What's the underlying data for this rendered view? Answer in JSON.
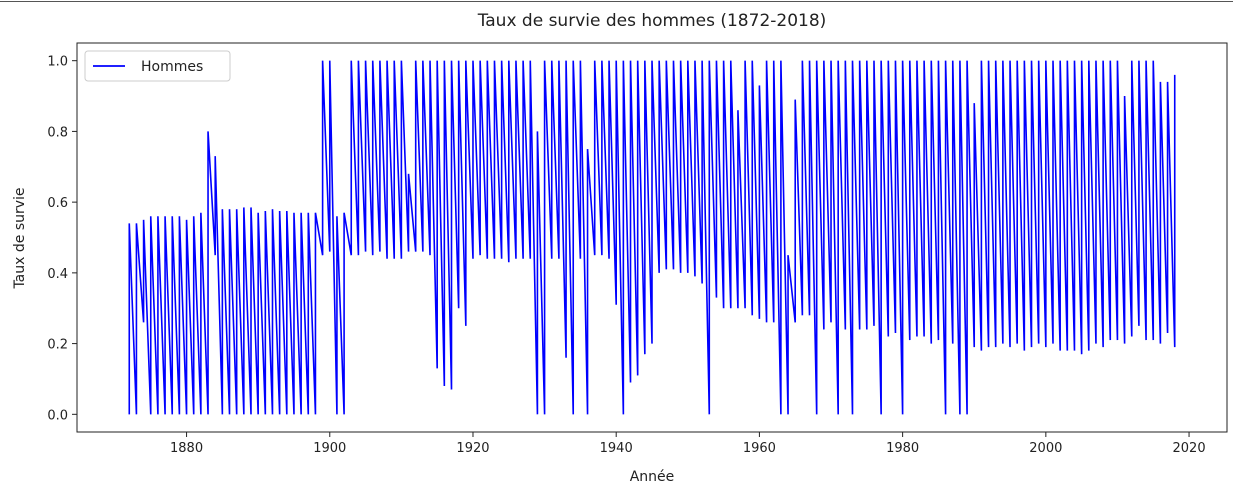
{
  "chart_data": {
    "type": "line",
    "title": "Taux de survie des hommes (1872-2018)",
    "xlabel": "Année",
    "ylabel": "Taux de survie",
    "xlim": [
      1864.7,
      2025.3
    ],
    "ylim": [
      -0.05,
      1.05
    ],
    "xticks": [
      1880,
      1900,
      1920,
      1940,
      1960,
      1980,
      2000,
      2020
    ],
    "yticks": [
      {
        "value": 0,
        "label": "0.0"
      },
      {
        "value": 0.2,
        "label": "0.2"
      },
      {
        "value": 0.4,
        "label": "0.4"
      },
      {
        "value": 0.6,
        "label": "0.6"
      },
      {
        "value": 0.8,
        "label": "0.8"
      },
      {
        "value": 1,
        "label": "1.0"
      }
    ],
    "legend": "upper left",
    "series": [
      {
        "name": "Hommes",
        "color": "#0000ff",
        "x": [
          1872,
          1872,
          1873,
          1873,
          1874,
          1874,
          1875,
          1875,
          1876,
          1876,
          1877,
          1877,
          1878,
          1878,
          1879,
          1879,
          1880,
          1880,
          1881,
          1881,
          1882,
          1882,
          1883,
          1883,
          1884,
          1884,
          1885,
          1885,
          1886,
          1886,
          1887,
          1887,
          1888,
          1888,
          1889,
          1889,
          1890,
          1890,
          1891,
          1891,
          1892,
          1892,
          1893,
          1893,
          1894,
          1894,
          1895,
          1895,
          1896,
          1896,
          1897,
          1897,
          1898,
          1898,
          1899,
          1899,
          1900,
          1900,
          1901,
          1901,
          1902,
          1902,
          1903,
          1903,
          1904,
          1904,
          1905,
          1905,
          1906,
          1906,
          1907,
          1907,
          1908,
          1908,
          1909,
          1909,
          1910,
          1910,
          1911,
          1911,
          1912,
          1912,
          1913,
          1913,
          1914,
          1914,
          1915,
          1915,
          1916,
          1916,
          1917,
          1917,
          1918,
          1918,
          1919,
          1919,
          1920,
          1920,
          1921,
          1921,
          1922,
          1922,
          1923,
          1923,
          1924,
          1924,
          1925,
          1925,
          1926,
          1926,
          1927,
          1927,
          1928,
          1928,
          1929,
          1929,
          1930,
          1930,
          1931,
          1931,
          1932,
          1932,
          1933,
          1933,
          1934,
          1934,
          1935,
          1935,
          1936,
          1936,
          1937,
          1937,
          1938,
          1938,
          1939,
          1939,
          1940,
          1940,
          1941,
          1941,
          1942,
          1942,
          1943,
          1943,
          1944,
          1944,
          1945,
          1945,
          1946,
          1946,
          1947,
          1947,
          1948,
          1948,
          1949,
          1949,
          1950,
          1950,
          1951,
          1951,
          1952,
          1952,
          1953,
          1953,
          1954,
          1954,
          1955,
          1955,
          1956,
          1956,
          1957,
          1957,
          1958,
          1958,
          1959,
          1959,
          1960,
          1960,
          1961,
          1961,
          1962,
          1962,
          1963,
          1963,
          1964,
          1964,
          1965,
          1965,
          1966,
          1966,
          1967,
          1967,
          1968,
          1968,
          1969,
          1969,
          1970,
          1970,
          1971,
          1971,
          1972,
          1972,
          1973,
          1973,
          1974,
          1974,
          1975,
          1975,
          1976,
          1976,
          1977,
          1977,
          1978,
          1978,
          1979,
          1979,
          1980,
          1980,
          1981,
          1981,
          1982,
          1982,
          1983,
          1983,
          1984,
          1984,
          1985,
          1985,
          1986,
          1986,
          1987,
          1987,
          1988,
          1988,
          1989,
          1989,
          1990,
          1990,
          1991,
          1991,
          1992,
          1992,
          1993,
          1993,
          1994,
          1994,
          1995,
          1995,
          1996,
          1996,
          1997,
          1997,
          1998,
          1998,
          1999,
          1999,
          2000,
          2000,
          2001,
          2001,
          2002,
          2002,
          2003,
          2003,
          2004,
          2004,
          2005,
          2005,
          2006,
          2006,
          2007,
          2007,
          2008,
          2008,
          2009,
          2009,
          2010,
          2010,
          2011,
          2011,
          2012,
          2012,
          2013,
          2013,
          2014,
          2014,
          2015,
          2015,
          2016,
          2016,
          2017,
          2017,
          2018,
          2018
        ],
        "values": [
          0,
          0.54,
          0,
          0.54,
          0.26,
          0.55,
          0,
          0.56,
          0,
          0.56,
          0,
          0.56,
          0,
          0.56,
          0,
          0.56,
          0,
          0.55,
          0,
          0.56,
          0,
          0.57,
          0,
          0.8,
          0.45,
          0.73,
          0,
          0.58,
          0,
          0.58,
          0,
          0.58,
          0,
          0.585,
          0,
          0.585,
          0,
          0.57,
          0,
          0.575,
          0,
          0.58,
          0,
          0.575,
          0,
          0.575,
          0,
          0.57,
          0,
          0.57,
          0,
          0.57,
          0,
          0.57,
          0.45,
          1,
          0.46,
          1,
          0,
          0.56,
          0,
          0.57,
          0.45,
          1,
          0.45,
          1,
          0.46,
          1,
          0.45,
          1,
          0.46,
          1,
          0.44,
          1,
          0.44,
          1,
          0.44,
          1,
          0.46,
          0.68,
          0.46,
          1,
          0.46,
          1,
          0.45,
          1,
          0.13,
          1,
          0.08,
          1,
          0.07,
          1,
          0.3,
          1,
          0.25,
          1,
          0.44,
          1,
          0.45,
          1,
          0.44,
          1,
          0.44,
          1,
          0.44,
          1,
          0.43,
          1,
          0.44,
          1,
          0.44,
          1,
          0.44,
          1,
          0,
          0.8,
          0,
          1,
          0.44,
          1,
          0.44,
          1,
          0.16,
          1,
          0,
          1,
          0.44,
          1,
          0,
          0.75,
          0.45,
          1,
          0.45,
          1,
          0.44,
          1,
          0.31,
          1,
          0,
          1,
          0.09,
          1,
          0.11,
          1,
          0.17,
          1,
          0.2,
          1,
          0.4,
          1,
          0.41,
          1,
          0.41,
          1,
          0.4,
          1,
          0.4,
          1,
          0.39,
          1,
          0.37,
          1,
          0,
          1,
          0.33,
          1,
          0.3,
          1,
          0.3,
          1,
          0.3,
          0.86,
          0.3,
          1,
          0.28,
          1,
          0.27,
          0.93,
          0.26,
          1,
          0.26,
          1,
          0,
          1,
          0,
          0.45,
          0.26,
          0.89,
          0.28,
          1,
          0.28,
          1,
          0,
          1,
          0.24,
          1,
          0.26,
          1,
          0,
          1,
          0.24,
          1,
          0,
          1,
          0.24,
          1,
          0.24,
          1,
          0.25,
          1,
          0,
          1,
          0.22,
          1,
          0.23,
          1,
          0,
          1,
          0.21,
          1,
          0.22,
          1,
          0.22,
          1,
          0.2,
          1,
          0.21,
          1,
          0,
          1,
          0.2,
          1,
          0,
          1,
          0,
          1,
          0.19,
          0.88,
          0.18,
          1,
          0.19,
          1,
          0.19,
          1,
          0.2,
          1,
          0.19,
          1,
          0.2,
          1,
          0.18,
          1,
          0.19,
          1,
          0.2,
          1,
          0.19,
          1,
          0.2,
          1,
          0.18,
          1,
          0.18,
          1,
          0.18,
          1,
          0.17,
          1,
          0.18,
          1,
          0.2,
          1,
          0.19,
          1,
          0.21,
          1,
          0.21,
          1,
          0.2,
          0.9,
          0.22,
          1,
          0.25,
          1,
          0.21,
          1,
          0.21,
          1,
          0.2,
          0.94,
          0.23,
          0.94,
          0.19,
          0.96
        ]
      }
    ]
  }
}
